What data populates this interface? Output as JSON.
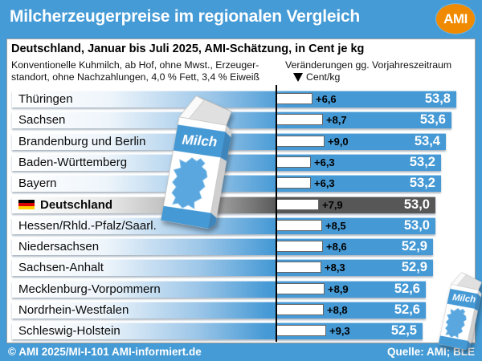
{
  "header": {
    "title": "Milcherzeugerpreise im regionalen Vergleich",
    "logo_text": "AMI"
  },
  "panel": {
    "subtitle": "Deutschland, Januar bis Juli 2025, AMI-Schätzung, in Cent je kg",
    "note_line1": "Konventionelle Kuhmilch, ab Hof, ohne Mwst., Erzeuger-",
    "note_line2": "standort, ohne Nachzahlungen, 4,0 % Fett, 3,4 % Eiweiß",
    "annotation_line1": "Veränderungen gg. Vorjahreszeitraum",
    "annotation_line2": "Cent/kg"
  },
  "carton": {
    "label": "Milch"
  },
  "footer": {
    "left": "© AMI 2025/MI-I-101 AMI-informiert.de",
    "right": "Quelle: AMI; BLE"
  },
  "colors": {
    "frame-blue": "#459BD6",
    "bar-blue": "#4599D5",
    "bar-blue-light": "#eef5fb",
    "highlight-dark": "#575757",
    "accent-orange": "#F08A00",
    "map-blue": "#5AA7DF"
  },
  "chart_data": {
    "type": "bar",
    "orientation": "horizontal",
    "title": "Milcherzeugerpreise im regionalen Vergleich",
    "subtitle": "Deutschland, Januar bis Juli 2025, AMI-Schätzung, in Cent je kg",
    "unit": "Cent je kg",
    "categories": [
      "Thüringen",
      "Sachsen",
      "Brandenburg und Berlin",
      "Baden-Württemberg",
      "Bayern",
      "Deutschland",
      "Hessen/Rhld.-Pfalz/Saarl.",
      "Niedersachsen",
      "Sachsen-Anhalt",
      "Mecklenburg-Vorpommern",
      "Nordrhein-Westfalen",
      "Schleswig-Holstein"
    ],
    "series": [
      {
        "name": "Milcherzeugerpreis in Cent je kg",
        "values": [
          53.8,
          53.6,
          53.4,
          53.2,
          53.2,
          53.0,
          53.0,
          52.9,
          52.9,
          52.6,
          52.6,
          52.5
        ],
        "labels": [
          "53,8",
          "53,6",
          "53,4",
          "53,2",
          "53,2",
          "53,0",
          "53,0",
          "52,9",
          "52,9",
          "52,6",
          "52,6",
          "52,5"
        ]
      },
      {
        "name": "Veränderung gg. Vorjahreszeitraum in Cent/kg",
        "values": [
          6.6,
          8.7,
          9.0,
          6.3,
          6.3,
          7.9,
          8.5,
          8.6,
          8.3,
          8.9,
          8.8,
          9.3
        ],
        "labels": [
          "+6,6",
          "+8,7",
          "+9,0",
          "+6,3",
          "+6,3",
          "+7,9",
          "+8,5",
          "+8,6",
          "+8,3",
          "+8,9",
          "+8,8",
          "+9,3"
        ]
      }
    ],
    "highlight_index": 5,
    "value_axis_range_hint": [
      52.5,
      53.8
    ],
    "grid": false,
    "legend": "none"
  }
}
